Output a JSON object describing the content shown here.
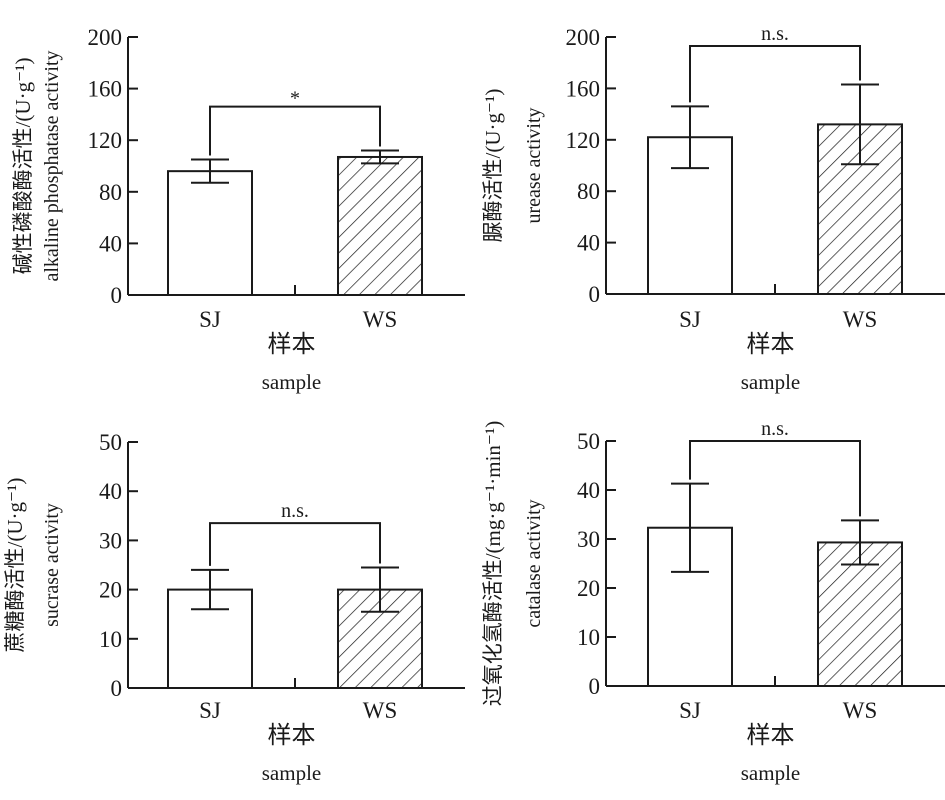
{
  "chart_data": [
    {
      "type": "bar",
      "panel": "top-left",
      "categories": [
        "SJ",
        "WS"
      ],
      "values": [
        96,
        107
      ],
      "errors": [
        9,
        5
      ],
      "patterns": [
        "plain",
        "hatched"
      ],
      "ylim": [
        0,
        200
      ],
      "yticks": [
        0,
        40,
        80,
        120,
        160,
        200
      ],
      "ylabel_cn": "碱性磷酸酶活性/(U·g⁻¹)",
      "ylabel_en": "alkaline phosphatase activity",
      "xlabel_cn": "样本",
      "xlabel_en": "sample",
      "significance": "*",
      "bracket_y": 146
    },
    {
      "type": "bar",
      "panel": "top-right",
      "categories": [
        "SJ",
        "WS"
      ],
      "values": [
        122,
        132
      ],
      "errors": [
        24,
        31
      ],
      "patterns": [
        "plain",
        "hatched"
      ],
      "ylim": [
        0,
        200
      ],
      "yticks": [
        0,
        40,
        80,
        120,
        160,
        200
      ],
      "ylabel_cn": "脲酶活性/(U·g⁻¹)",
      "ylabel_en": "urease activity",
      "xlabel_cn": "样本",
      "xlabel_en": "sample",
      "significance": "n.s.",
      "bracket_y": 193
    },
    {
      "type": "bar",
      "panel": "bottom-left",
      "categories": [
        "SJ",
        "WS"
      ],
      "values": [
        20,
        20
      ],
      "errors": [
        4,
        4.5
      ],
      "patterns": [
        "plain",
        "hatched"
      ],
      "ylim": [
        0,
        50
      ],
      "yticks": [
        0,
        10,
        20,
        30,
        40,
        50
      ],
      "ylabel_cn": "蔗糖酶活性/(U·g⁻¹)",
      "ylabel_en": "sucrase activity",
      "xlabel_cn": "样本",
      "xlabel_en": "sample",
      "significance": "n.s.",
      "bracket_y": 33.5
    },
    {
      "type": "bar",
      "panel": "bottom-right",
      "categories": [
        "SJ",
        "WS"
      ],
      "values": [
        32.3,
        29.3
      ],
      "errors": [
        9,
        4.5
      ],
      "patterns": [
        "plain",
        "hatched"
      ],
      "ylim": [
        0,
        50
      ],
      "yticks": [
        0,
        10,
        20,
        30,
        40,
        50
      ],
      "ylabel_cn": "过氧化氢酶活性/(mg·g⁻¹·min⁻¹)",
      "ylabel_en": "catalase activity",
      "xlabel_cn": "样本",
      "xlabel_en": "sample",
      "significance": "n.s.",
      "bracket_y": 50
    }
  ]
}
